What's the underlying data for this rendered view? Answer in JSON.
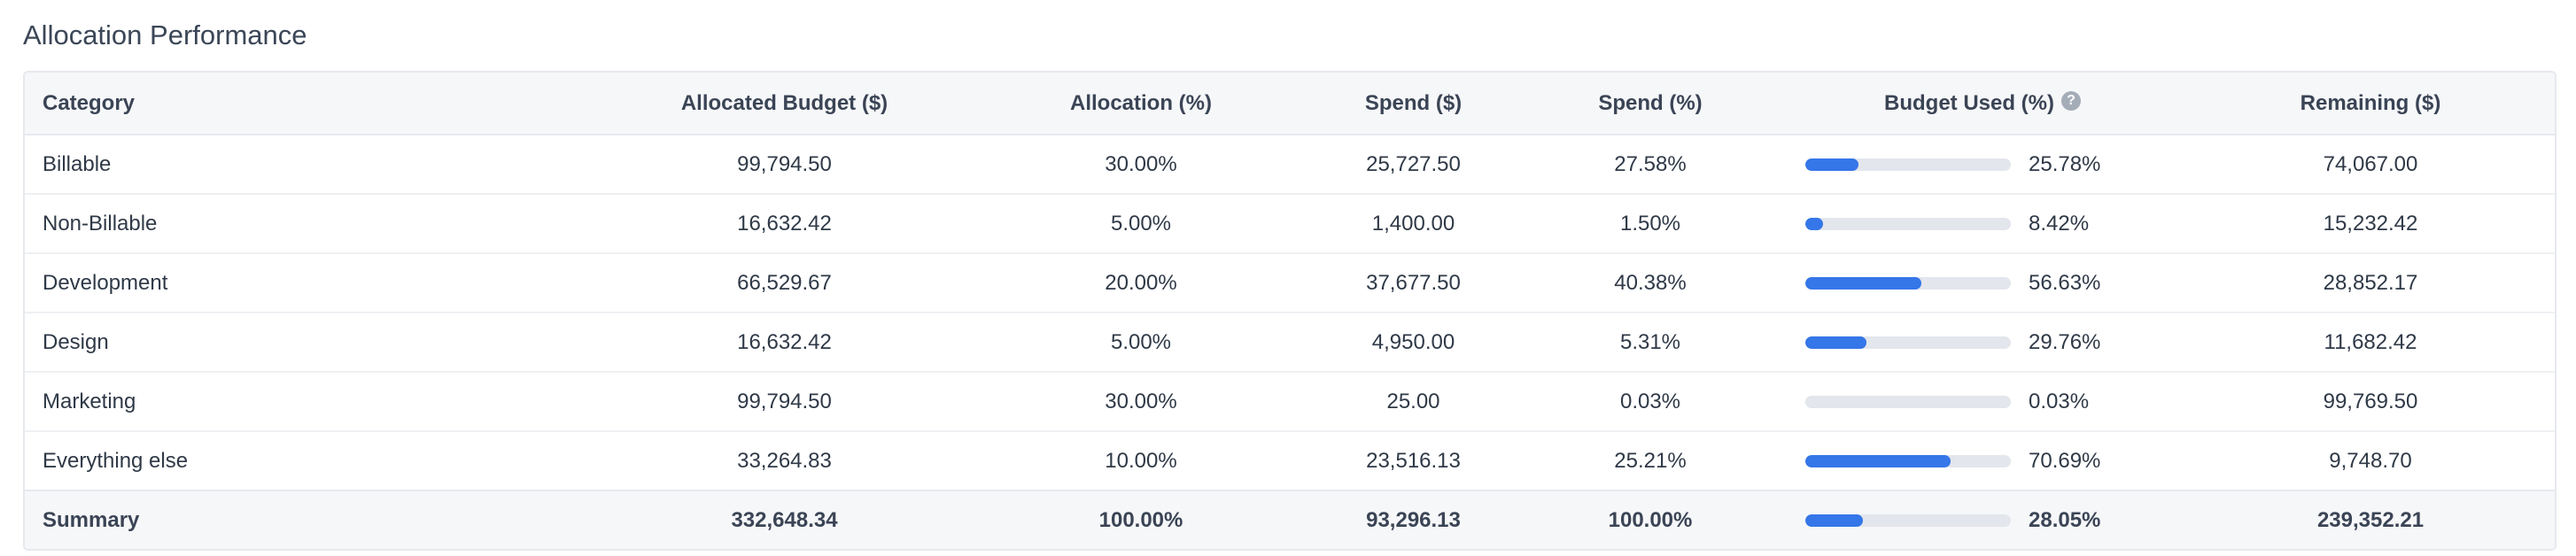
{
  "section": {
    "title": "Allocation Performance"
  },
  "table": {
    "headers": {
      "category": "Category",
      "allocated_budget": "Allocated Budget ($)",
      "allocation_pct": "Allocation (%)",
      "spend": "Spend ($)",
      "spend_pct": "Spend (%)",
      "budget_used_pct": "Budget Used (%)",
      "remaining": "Remaining ($)"
    },
    "help_icon": {
      "glyph": "?",
      "icon": "question-circle-icon"
    },
    "rows": [
      {
        "category": "Billable",
        "allocated_budget": "99,794.50",
        "allocation_pct": "30.00%",
        "spend": "25,727.50",
        "spend_pct": "27.58%",
        "budget_used_pct": "25.78%",
        "budget_used_value": 25.78,
        "remaining": "74,067.00"
      },
      {
        "category": "Non-Billable",
        "allocated_budget": "16,632.42",
        "allocation_pct": "5.00%",
        "spend": "1,400.00",
        "spend_pct": "1.50%",
        "budget_used_pct": "8.42%",
        "budget_used_value": 8.42,
        "remaining": "15,232.42"
      },
      {
        "category": "Development",
        "allocated_budget": "66,529.67",
        "allocation_pct": "20.00%",
        "spend": "37,677.50",
        "spend_pct": "40.38%",
        "budget_used_pct": "56.63%",
        "budget_used_value": 56.63,
        "remaining": "28,852.17"
      },
      {
        "category": "Design",
        "allocated_budget": "16,632.42",
        "allocation_pct": "5.00%",
        "spend": "4,950.00",
        "spend_pct": "5.31%",
        "budget_used_pct": "29.76%",
        "budget_used_value": 29.76,
        "remaining": "11,682.42"
      },
      {
        "category": "Marketing",
        "allocated_budget": "99,794.50",
        "allocation_pct": "30.00%",
        "spend": "25.00",
        "spend_pct": "0.03%",
        "budget_used_pct": "0.03%",
        "budget_used_value": 0.03,
        "remaining": "99,769.50"
      },
      {
        "category": "Everything else",
        "allocated_budget": "33,264.83",
        "allocation_pct": "10.00%",
        "spend": "23,516.13",
        "spend_pct": "25.21%",
        "budget_used_pct": "70.69%",
        "budget_used_value": 70.69,
        "remaining": "9,748.70"
      }
    ],
    "summary": {
      "category": "Summary",
      "allocated_budget": "332,648.34",
      "allocation_pct": "100.00%",
      "spend": "93,296.13",
      "spend_pct": "100.00%",
      "budget_used_pct": "28.05%",
      "budget_used_value": 28.05,
      "remaining": "239,352.21"
    }
  },
  "colors": {
    "progress_fill": "#3576e8",
    "progress_track": "#e3e6ec",
    "header_bg": "#f6f7f9",
    "text": "#2f3947"
  }
}
